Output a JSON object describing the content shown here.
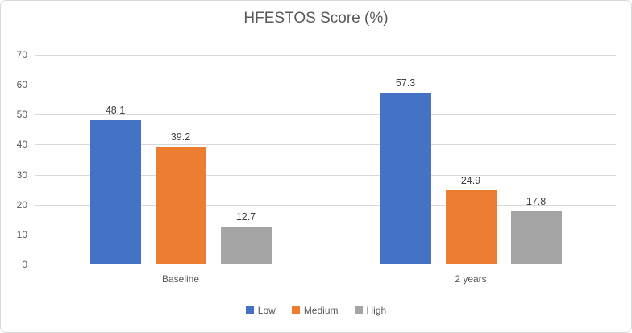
{
  "chart_data": {
    "type": "bar",
    "title": "HFESTOS Score (%)",
    "categories": [
      "Baseline",
      "2 years"
    ],
    "series": [
      {
        "name": "Low",
        "color": "#4472C4",
        "values": [
          48.1,
          57.3
        ]
      },
      {
        "name": "Medium",
        "color": "#ED7D31",
        "values": [
          39.2,
          24.9
        ]
      },
      {
        "name": "High",
        "color": "#A5A5A5",
        "values": [
          12.7,
          17.8
        ]
      }
    ],
    "data_labels": [
      [
        "48.1",
        "39.2",
        "12.7"
      ],
      [
        "57.3",
        "24.9",
        "17.8"
      ]
    ],
    "xlabel": "",
    "ylabel": "",
    "ylim": [
      0,
      70
    ],
    "yticks": [
      0,
      10,
      20,
      30,
      40,
      50,
      60,
      70
    ],
    "ytick_labels": [
      "0",
      "10",
      "20",
      "30",
      "40",
      "50",
      "60",
      "70"
    ],
    "grid": true,
    "legend_position": "bottom"
  },
  "style": {
    "grid_color": "#D9D9D9",
    "axis_line_color": "#D9D9D9",
    "frame_border_color": "#D9D9D9",
    "title_color": "#595959",
    "tick_label_color": "#595959",
    "category_label_color": "#595959",
    "legend_label_color": "#595959",
    "data_label_color": "#404040",
    "background": "#FFFFFF"
  }
}
